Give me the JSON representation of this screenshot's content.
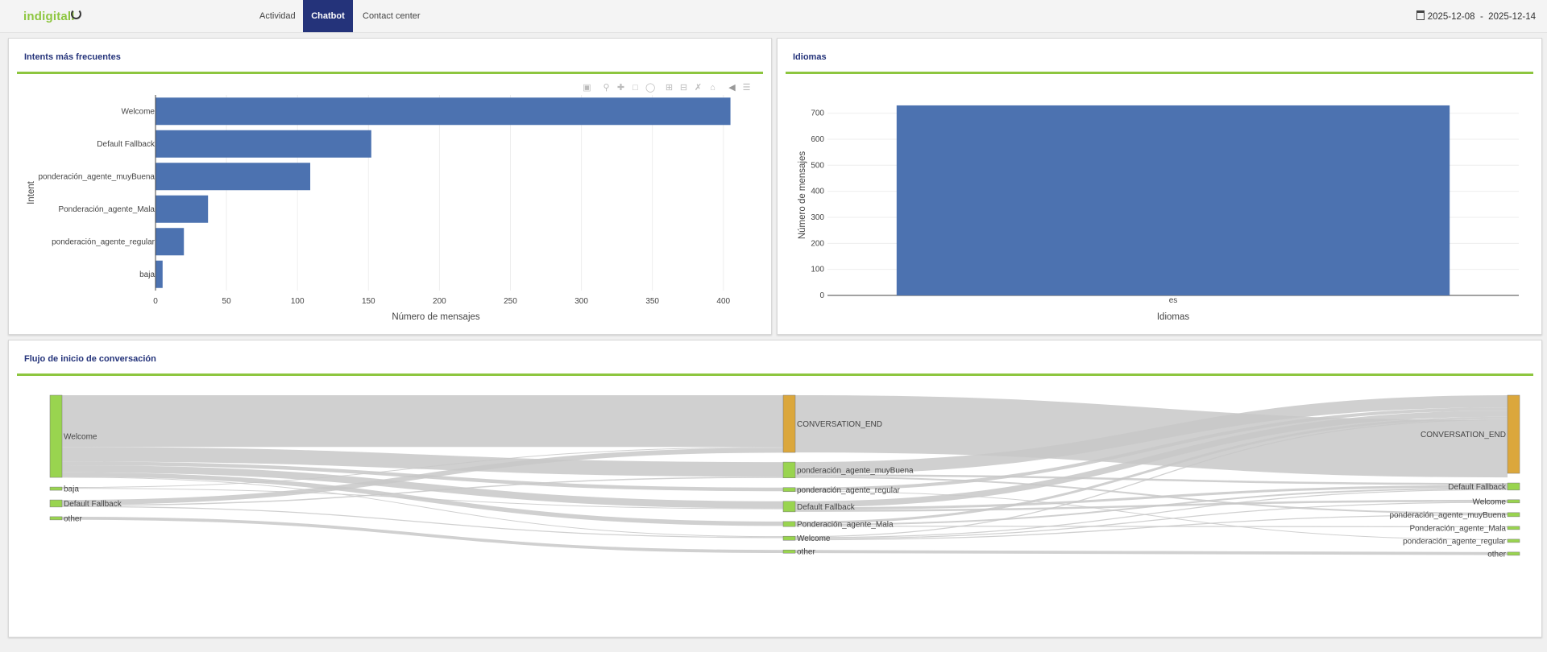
{
  "header": {
    "logo_text": "indigitall",
    "tabs": [
      {
        "label": "Actividad",
        "active": false
      },
      {
        "label": "Chatbot",
        "active": true
      },
      {
        "label": "Contact center",
        "active": false
      }
    ],
    "date_from": "2025-12-08",
    "date_sep": "-",
    "date_to": "2025-12-14"
  },
  "panels": {
    "intents": {
      "title": "Intents más frecuentes"
    },
    "idiomas": {
      "title": "Idiomas"
    },
    "flujo": {
      "title": "Flujo de inicio de conversación"
    }
  },
  "colors": {
    "bar": "#4c72b0",
    "accent": "#8dc63f",
    "nav": "#24337a",
    "node_green": "#99d44f",
    "node_gold": "#dba73c",
    "link": "#c8c8c8"
  },
  "chart_data": [
    {
      "type": "bar",
      "orientation": "horizontal",
      "categories": [
        "Welcome",
        "Default Fallback",
        "ponderación_agente_muyBuena",
        "Ponderación_agente_Mala",
        "ponderación_agente_regular",
        "baja"
      ],
      "values": [
        405,
        152,
        109,
        37,
        20,
        5
      ],
      "xlabel": "Número de mensajes",
      "ylabel": "Intent",
      "xlim": [
        0,
        420
      ],
      "xticks": [
        0,
        50,
        100,
        150,
        200,
        250,
        300,
        350,
        400
      ],
      "grid": true
    },
    {
      "type": "bar",
      "categories": [
        "es"
      ],
      "values": [
        730
      ],
      "xlabel": "Idiomas",
      "ylabel": "Número de mensajes",
      "ylim": [
        0,
        770
      ],
      "yticks": [
        0,
        100,
        200,
        300,
        400,
        500,
        600,
        700
      ],
      "grid": true
    },
    {
      "type": "sankey",
      "columns": [
        [
          "Welcome",
          "baja",
          "Default Fallback",
          "other"
        ],
        [
          "CONVERSATION_END",
          "ponderación_agente_muyBuena",
          "ponderación_agente_regular",
          "Default Fallback",
          "Ponderación_agente_Mala",
          "Welcome",
          "other"
        ],
        [
          "CONVERSATION_END",
          "Default Fallback",
          "Welcome",
          "ponderación_agente_muyBuena",
          "Ponderación_agente_Mala",
          "ponderación_agente_regular",
          "other"
        ]
      ],
      "node_values": [
        [
          405,
          5,
          35,
          15
        ],
        [
          282,
          78,
          20,
          52,
          25,
          20,
          15
        ],
        [
          385,
          35,
          15,
          20,
          10,
          5,
          15
        ]
      ],
      "links": [
        {
          "source": [
            0,
            0
          ],
          "target": [
            1,
            0
          ],
          "value": 255
        },
        {
          "source": [
            0,
            0
          ],
          "target": [
            1,
            1
          ],
          "value": 72
        },
        {
          "source": [
            0,
            0
          ],
          "target": [
            1,
            2
          ],
          "value": 18
        },
        {
          "source": [
            0,
            0
          ],
          "target": [
            1,
            3
          ],
          "value": 35
        },
        {
          "source": [
            0,
            0
          ],
          "target": [
            1,
            4
          ],
          "value": 22
        },
        {
          "source": [
            0,
            0
          ],
          "target": [
            1,
            5
          ],
          "value": 3
        },
        {
          "source": [
            0,
            1
          ],
          "target": [
            1,
            0
          ],
          "value": 3
        },
        {
          "source": [
            0,
            1
          ],
          "target": [
            1,
            3
          ],
          "value": 2
        },
        {
          "source": [
            0,
            2
          ],
          "target": [
            1,
            0
          ],
          "value": 24
        },
        {
          "source": [
            0,
            2
          ],
          "target": [
            1,
            1
          ],
          "value": 6
        },
        {
          "source": [
            0,
            2
          ],
          "target": [
            1,
            5
          ],
          "value": 5
        },
        {
          "source": [
            0,
            3
          ],
          "target": [
            1,
            6
          ],
          "value": 15
        },
        {
          "source": [
            1,
            1
          ],
          "target": [
            2,
            0
          ],
          "value": 60
        },
        {
          "source": [
            1,
            1
          ],
          "target": [
            2,
            1
          ],
          "value": 10
        },
        {
          "source": [
            1,
            1
          ],
          "target": [
            2,
            3
          ],
          "value": 8
        },
        {
          "source": [
            1,
            2
          ],
          "target": [
            2,
            0
          ],
          "value": 16
        },
        {
          "source": [
            1,
            2
          ],
          "target": [
            2,
            5
          ],
          "value": 4
        },
        {
          "source": [
            1,
            3
          ],
          "target": [
            2,
            0
          ],
          "value": 30
        },
        {
          "source": [
            1,
            3
          ],
          "target": [
            2,
            1
          ],
          "value": 12
        },
        {
          "source": [
            1,
            3
          ],
          "target": [
            2,
            2
          ],
          "value": 10
        },
        {
          "source": [
            1,
            4
          ],
          "target": [
            2,
            0
          ],
          "value": 12
        },
        {
          "source": [
            1,
            4
          ],
          "target": [
            2,
            1
          ],
          "value": 8
        },
        {
          "source": [
            1,
            4
          ],
          "target": [
            2,
            4
          ],
          "value": 5
        },
        {
          "source": [
            1,
            5
          ],
          "target": [
            2,
            0
          ],
          "value": 5
        },
        {
          "source": [
            1,
            5
          ],
          "target": [
            2,
            1
          ],
          "value": 5
        },
        {
          "source": [
            1,
            5
          ],
          "target": [
            2,
            2
          ],
          "value": 5
        },
        {
          "source": [
            1,
            5
          ],
          "target": [
            2,
            3
          ],
          "value": 5
        },
        {
          "source": [
            1,
            0
          ],
          "target": [
            2,
            0
          ],
          "value": 282
        },
        {
          "source": [
            1,
            6
          ],
          "target": [
            2,
            6
          ],
          "value": 15
        }
      ]
    }
  ]
}
